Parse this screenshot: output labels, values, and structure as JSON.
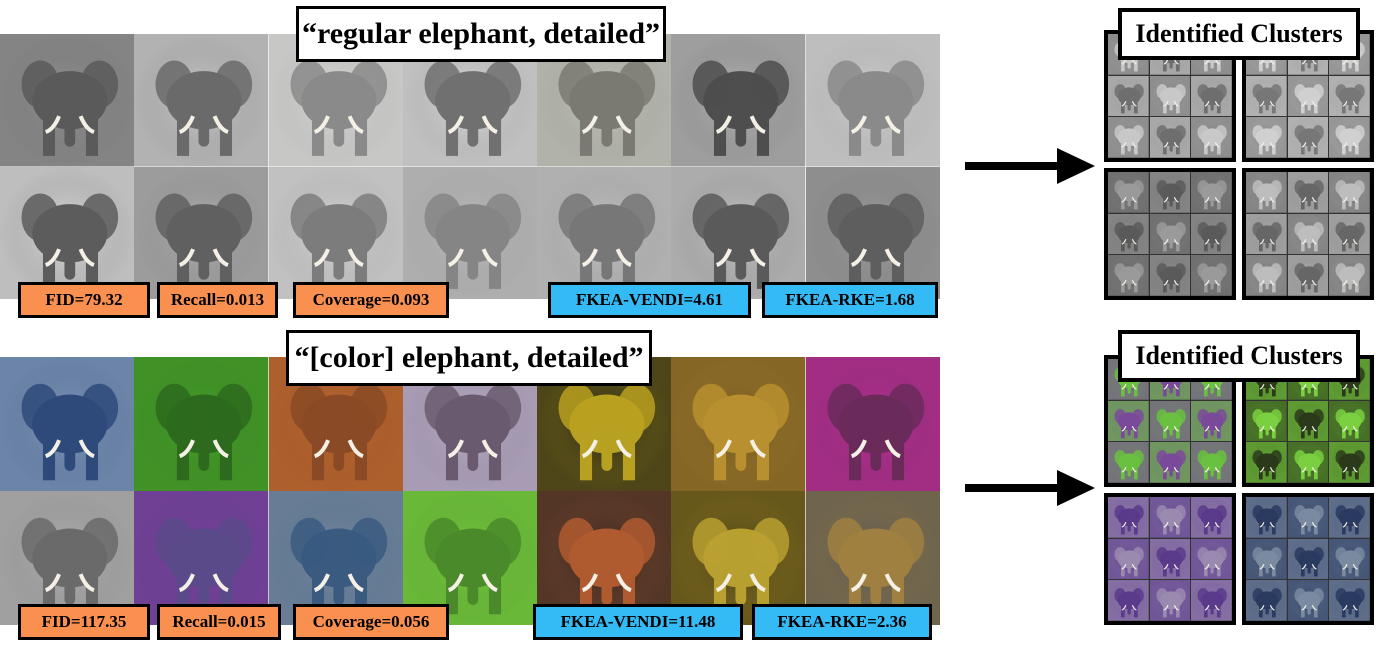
{
  "top": {
    "caption": "“regular elephant, detailed”",
    "metrics": [
      {
        "label": "FID=79.32",
        "kind": "orange"
      },
      {
        "label": "Recall=0.013",
        "kind": "orange"
      },
      {
        "label": "Coverage=0.093",
        "kind": "orange"
      },
      {
        "label": "FKEA-VENDI=4.61",
        "kind": "blue"
      },
      {
        "label": "FKEA-RKE=1.68",
        "kind": "blue"
      }
    ],
    "tile_colors": [
      [
        "#9a9a9a",
        "#5a5a5a"
      ],
      [
        "#d8d8d8",
        "#6a6a6a"
      ],
      [
        "#e8e8e6",
        "#8a8a8a"
      ],
      [
        "#ececec",
        "#707070"
      ],
      [
        "#cfd0c8",
        "#7a7a72"
      ],
      [
        "#c9c9c9",
        "#4e4e4e"
      ],
      [
        "#dadada",
        "#8a8a8a"
      ],
      [
        "#f2f2f2",
        "#5c5c5c"
      ],
      [
        "#bdbdbd",
        "#606060"
      ],
      [
        "#e6e6e6",
        "#7c7c7c"
      ],
      [
        "#c4c4c4",
        "#858585"
      ],
      [
        "#cfcfcf",
        "#777"
      ],
      [
        "#d9d9d9",
        "#5a5a5a"
      ],
      [
        "#a8a8a8",
        "#5e5e5e"
      ]
    ],
    "clusters_title": "Identified Clusters",
    "cluster_colors": [
      [
        "#c8c8c8",
        "#6e6e6e"
      ],
      [
        "#d0d0d0",
        "#777"
      ],
      [
        "#9a9a9a",
        "#5a5a5a"
      ],
      [
        "#bdbdbd",
        "#666"
      ]
    ]
  },
  "bottom": {
    "caption": "“[color] elephant, detailed”",
    "metrics": [
      {
        "label": "FID=117.35",
        "kind": "orange"
      },
      {
        "label": "Recall=0.015",
        "kind": "orange"
      },
      {
        "label": "Coverage=0.056",
        "kind": "orange"
      },
      {
        "label": "FKEA-VENDI=11.48",
        "kind": "blue"
      },
      {
        "label": "FKEA-RKE=2.36",
        "kind": "blue"
      }
    ],
    "tile_colors": [
      [
        "#8da3c0",
        "#2e4a7a"
      ],
      [
        "#4aa82a",
        "#2d6a1e"
      ],
      [
        "#c06a30",
        "#8a4a25"
      ],
      [
        "#c8c0d8",
        "#6a5a70"
      ],
      [
        "#141414",
        "#b8a020"
      ],
      [
        "#6a5020",
        "#b8902f"
      ],
      [
        "#c0309a",
        "#6a2a5a"
      ],
      [
        "#bdbdbd",
        "#6a6a6a"
      ],
      [
        "#7a3a9a",
        "#5a4a8a"
      ],
      [
        "#8090a0",
        "#3a5a80"
      ],
      [
        "#7ad040",
        "#4a8a2a"
      ],
      [
        "#222",
        "#b05a30"
      ],
      [
        "#3a3010",
        "#b8a030"
      ],
      [
        "#555",
        "#a08040"
      ]
    ],
    "clusters_title": "Identified Clusters",
    "cluster_colors": [
      [
        "#6ac040",
        "#7a4a9a"
      ],
      [
        "#2a3a1a",
        "#7ad040"
      ],
      [
        "#5a3a8a",
        "#9a8ab0"
      ],
      [
        "#2a3a60",
        "#7a8aa0"
      ]
    ]
  },
  "colors": {
    "orange": "#fa9050",
    "blue": "#34baf5"
  }
}
